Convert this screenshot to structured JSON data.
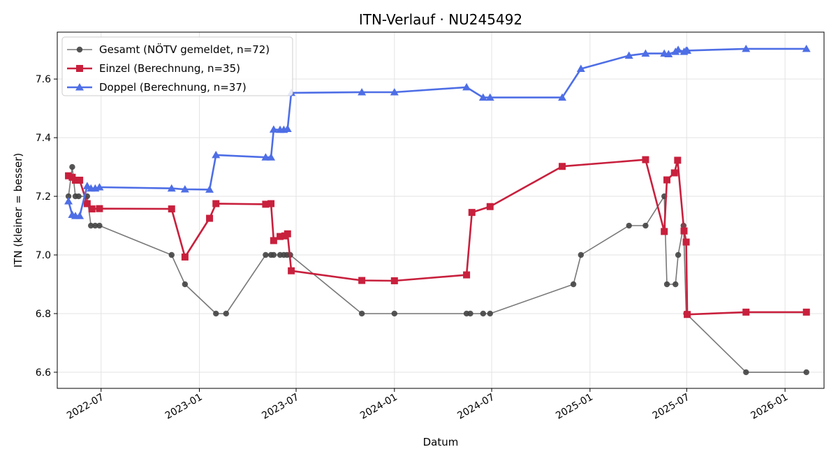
{
  "chart_data": {
    "type": "line",
    "title": "ITN-Verlauf · NU245492",
    "xlabel": "Datum",
    "ylabel": "ITN  (kleiner = besser)",
    "x_axis_type": "date",
    "xlim": [
      "2022-04-10",
      "2026-03-15"
    ],
    "ylim": [
      6.545,
      7.76
    ],
    "yticks": [
      6.6,
      6.8,
      7.0,
      7.2,
      7.4,
      7.6
    ],
    "xticks": [
      {
        "date": "2022-07-01",
        "label": "2022-07"
      },
      {
        "date": "2023-01-01",
        "label": "2023-01"
      },
      {
        "date": "2023-07-01",
        "label": "2023-07"
      },
      {
        "date": "2024-01-01",
        "label": "2024-01"
      },
      {
        "date": "2024-07-01",
        "label": "2024-07"
      },
      {
        "date": "2025-01-01",
        "label": "2025-01"
      },
      {
        "date": "2025-07-01",
        "label": "2025-07"
      },
      {
        "date": "2026-01-01",
        "label": "2026-01"
      }
    ],
    "grid": true,
    "legend_position": "top-left",
    "series": [
      {
        "name": "Gesamt (NÖTV gemeldet, n=72)",
        "color": "#444444",
        "marker": "circle",
        "points": [
          [
            "2022-05-01",
            7.2
          ],
          [
            "2022-05-08",
            7.3
          ],
          [
            "2022-05-14",
            7.2
          ],
          [
            "2022-05-20",
            7.2
          ],
          [
            "2022-06-05",
            7.2
          ],
          [
            "2022-06-12",
            7.1
          ],
          [
            "2022-06-20",
            7.1
          ],
          [
            "2022-06-28",
            7.1
          ],
          [
            "2022-11-10",
            7.0
          ],
          [
            "2022-12-05",
            6.9
          ],
          [
            "2023-02-01",
            6.8
          ],
          [
            "2023-02-20",
            6.8
          ],
          [
            "2023-05-05",
            7.0
          ],
          [
            "2023-05-15",
            7.0
          ],
          [
            "2023-05-20",
            7.0
          ],
          [
            "2023-06-01",
            7.0
          ],
          [
            "2023-06-08",
            7.0
          ],
          [
            "2023-06-14",
            7.0
          ],
          [
            "2023-06-20",
            7.0
          ],
          [
            "2023-11-01",
            6.8
          ],
          [
            "2024-01-01",
            6.8
          ],
          [
            "2024-05-15",
            6.8
          ],
          [
            "2024-05-22",
            6.8
          ],
          [
            "2024-06-15",
            6.8
          ],
          [
            "2024-06-28",
            6.8
          ],
          [
            "2024-12-01",
            6.9
          ],
          [
            "2024-12-15",
            7.0
          ],
          [
            "2025-03-15",
            7.1
          ],
          [
            "2025-04-15",
            7.1
          ],
          [
            "2025-05-20",
            7.2
          ],
          [
            "2025-05-25",
            6.9
          ],
          [
            "2025-06-10",
            6.9
          ],
          [
            "2025-06-15",
            7.0
          ],
          [
            "2025-06-25",
            7.1
          ],
          [
            "2025-06-30",
            6.8
          ],
          [
            "2025-10-20",
            6.6
          ],
          [
            "2026-02-10",
            6.6
          ]
        ]
      },
      {
        "name": "Einzel (Berechnung, n=35)",
        "color": "#c8203d",
        "marker": "square",
        "points": [
          [
            "2022-05-01",
            7.27
          ],
          [
            "2022-05-08",
            7.265
          ],
          [
            "2022-05-14",
            7.255
          ],
          [
            "2022-05-22",
            7.255
          ],
          [
            "2022-06-05",
            7.175
          ],
          [
            "2022-06-14",
            7.157
          ],
          [
            "2022-06-28",
            7.158
          ],
          [
            "2022-11-10",
            7.157
          ],
          [
            "2022-12-05",
            6.993
          ],
          [
            "2023-01-20",
            7.125
          ],
          [
            "2023-02-01",
            7.175
          ],
          [
            "2023-05-05",
            7.173
          ],
          [
            "2023-05-15",
            7.175
          ],
          [
            "2023-05-20",
            7.049
          ],
          [
            "2023-06-01",
            7.063
          ],
          [
            "2023-06-10",
            7.065
          ],
          [
            "2023-06-15",
            7.072
          ],
          [
            "2023-06-22",
            6.946
          ],
          [
            "2023-11-01",
            6.913
          ],
          [
            "2024-01-01",
            6.912
          ],
          [
            "2024-05-15",
            6.932
          ],
          [
            "2024-05-25",
            7.145
          ],
          [
            "2024-06-28",
            7.165
          ],
          [
            "2024-11-10",
            7.302
          ],
          [
            "2025-04-15",
            7.325
          ],
          [
            "2025-05-20",
            7.08
          ],
          [
            "2025-05-25",
            7.256
          ],
          [
            "2025-06-08",
            7.28
          ],
          [
            "2025-06-14",
            7.323
          ],
          [
            "2025-06-26",
            7.082
          ],
          [
            "2025-06-30",
            7.044
          ],
          [
            "2025-07-02",
            6.797
          ],
          [
            "2025-10-20",
            6.805
          ],
          [
            "2026-02-10",
            6.805
          ]
        ]
      },
      {
        "name": "Doppel (Berechnung, n=37)",
        "color": "#4e6ee6",
        "marker": "triangle",
        "points": [
          [
            "2022-05-01",
            7.183
          ],
          [
            "2022-05-08",
            7.137
          ],
          [
            "2022-05-14",
            7.133
          ],
          [
            "2022-05-22",
            7.133
          ],
          [
            "2022-06-05",
            7.235
          ],
          [
            "2022-06-12",
            7.227
          ],
          [
            "2022-06-20",
            7.227
          ],
          [
            "2022-06-28",
            7.231
          ],
          [
            "2022-11-10",
            7.227
          ],
          [
            "2022-12-05",
            7.224
          ],
          [
            "2023-01-20",
            7.223
          ],
          [
            "2023-02-01",
            7.341
          ],
          [
            "2023-05-05",
            7.333
          ],
          [
            "2023-05-15",
            7.333
          ],
          [
            "2023-05-20",
            7.428
          ],
          [
            "2023-06-01",
            7.427
          ],
          [
            "2023-06-08",
            7.427
          ],
          [
            "2023-06-15",
            7.43
          ],
          [
            "2023-06-22",
            7.553
          ],
          [
            "2023-11-01",
            7.555
          ],
          [
            "2024-01-01",
            7.555
          ],
          [
            "2024-05-15",
            7.572
          ],
          [
            "2024-06-15",
            7.537
          ],
          [
            "2024-06-28",
            7.537
          ],
          [
            "2024-11-10",
            7.537
          ],
          [
            "2024-12-15",
            7.635
          ],
          [
            "2025-03-15",
            7.68
          ],
          [
            "2025-04-15",
            7.687
          ],
          [
            "2025-05-20",
            7.687
          ],
          [
            "2025-05-28",
            7.685
          ],
          [
            "2025-06-10",
            7.693
          ],
          [
            "2025-06-15",
            7.7
          ],
          [
            "2025-06-26",
            7.693
          ],
          [
            "2025-06-30",
            7.697
          ],
          [
            "2025-07-02",
            7.697
          ],
          [
            "2025-10-20",
            7.703
          ],
          [
            "2026-02-10",
            7.703
          ]
        ]
      }
    ]
  }
}
